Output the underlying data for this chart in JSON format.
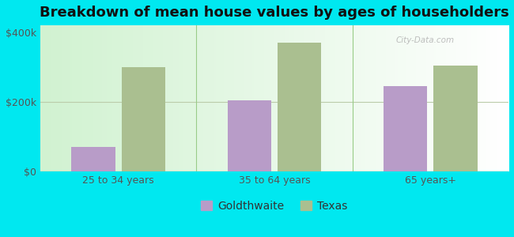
{
  "title": "Breakdown of mean house values by ages of householders",
  "categories": [
    "25 to 34 years",
    "35 to 64 years",
    "65 years+"
  ],
  "goldthwaite_values": [
    70000,
    205000,
    245000
  ],
  "texas_values": [
    300000,
    370000,
    305000
  ],
  "color_goldthwaite": "#b89cc8",
  "color_texas": "#aabf90",
  "background_outer": "#00e8f0",
  "ylim": [
    0,
    420000
  ],
  "ytick_labels": [
    "$0",
    "$200k",
    "$400k"
  ],
  "ytick_values": [
    0,
    200000,
    400000
  ],
  "bar_width": 0.28,
  "legend_labels": [
    "Goldthwaite",
    "Texas"
  ],
  "title_fontsize": 13,
  "tick_fontsize": 9,
  "legend_fontsize": 10,
  "watermark": "City-Data.com"
}
